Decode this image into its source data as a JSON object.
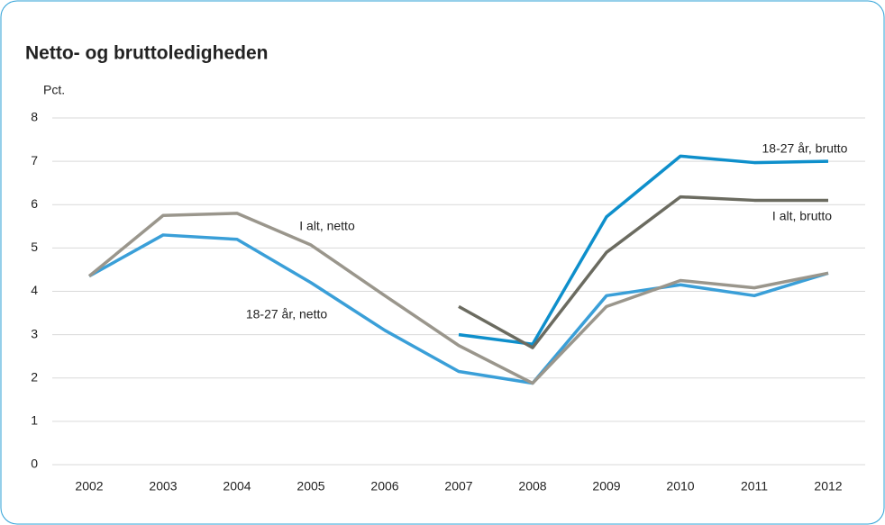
{
  "chart_data": {
    "type": "line",
    "title": "Netto- og bruttoledigheden",
    "y_label": "Pct.",
    "categories": [
      "2002",
      "2003",
      "2004",
      "2005",
      "2006",
      "2007",
      "2008",
      "2009",
      "2010",
      "2011",
      "2012"
    ],
    "series": [
      {
        "name": "18-27 år, netto",
        "color": "#3a9fd8",
        "values": [
          4.35,
          5.3,
          5.2,
          4.2,
          3.1,
          2.15,
          1.88,
          3.9,
          4.15,
          3.9,
          4.42
        ]
      },
      {
        "name": "I alt, netto",
        "color": "#9a968c",
        "values": [
          4.35,
          5.75,
          5.8,
          5.07,
          3.9,
          2.75,
          1.88,
          3.65,
          4.25,
          4.08,
          4.42
        ]
      },
      {
        "name": "18-27 år, brutto",
        "color": "#0e8fcb",
        "values": [
          null,
          null,
          null,
          null,
          null,
          3.0,
          2.78,
          5.72,
          7.12,
          6.97,
          7.0
        ]
      },
      {
        "name": "I alt, brutto",
        "color": "#6b6b60",
        "values": [
          null,
          null,
          null,
          null,
          null,
          3.65,
          2.7,
          4.9,
          6.18,
          6.1,
          6.1
        ]
      }
    ],
    "ylim": [
      0,
      8
    ],
    "yticks": [
      0,
      1,
      2,
      3,
      4,
      5,
      6,
      7,
      8
    ],
    "grid": true
  }
}
